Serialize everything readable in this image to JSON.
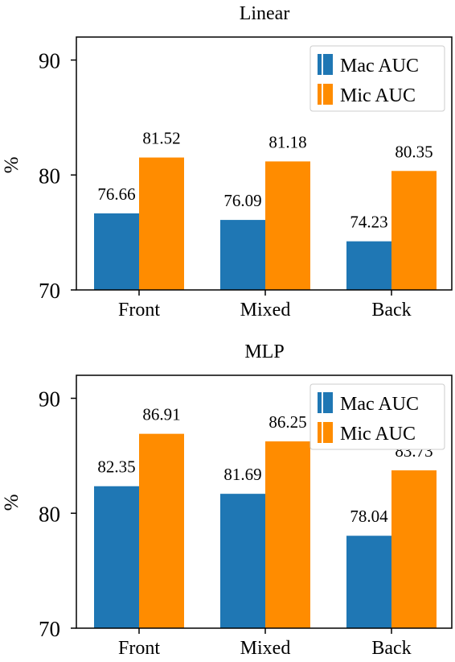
{
  "chart_data": [
    {
      "type": "bar",
      "title": "Linear",
      "xlabel": "",
      "ylabel": "%",
      "categories": [
        "Front",
        "Mixed",
        "Back"
      ],
      "ylim": [
        70,
        92
      ],
      "yticks": [
        70,
        80,
        90
      ],
      "series": [
        {
          "name": "Mac AUC",
          "color": "#1f77b4",
          "values": [
            76.66,
            76.09,
            74.23
          ]
        },
        {
          "name": "Mic AUC",
          "color": "#ff8c00",
          "values": [
            81.52,
            81.18,
            80.35
          ]
        }
      ],
      "grid": false,
      "legend": "top-right"
    },
    {
      "type": "bar",
      "title": "MLP",
      "xlabel": "",
      "ylabel": "%",
      "categories": [
        "Front",
        "Mixed",
        "Back"
      ],
      "ylim": [
        70,
        92
      ],
      "yticks": [
        70,
        80,
        90
      ],
      "series": [
        {
          "name": "Mac AUC",
          "color": "#1f77b4",
          "values": [
            82.35,
            81.69,
            78.04
          ]
        },
        {
          "name": "Mic AUC",
          "color": "#ff8c00",
          "values": [
            86.91,
            86.25,
            83.73
          ]
        }
      ],
      "grid": false,
      "legend": "top-right"
    }
  ]
}
